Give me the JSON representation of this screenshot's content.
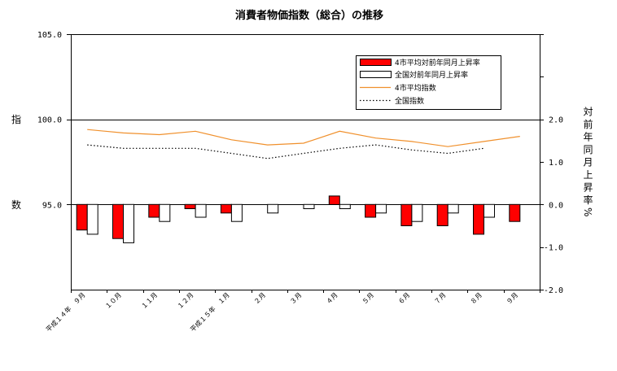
{
  "chart_data": {
    "type": "bar",
    "title": "消費者物価指数（総合）の推移",
    "categories": [
      "平成１４年　９月",
      "１０月",
      "１１月",
      "１２月",
      "平成１５年　１月",
      "２月",
      "３月",
      "４月",
      "５月",
      "６月",
      "７月",
      "８月",
      "９月"
    ],
    "ylabel_left_chars": [
      "指",
      "数"
    ],
    "ylim_left": [
      90,
      105
    ],
    "yticks_left": [
      105,
      100,
      95
    ],
    "ytick_labels_left": [
      "105.0",
      "100.0",
      "95.0"
    ],
    "ylabel_right": "対前年同月上昇率%",
    "ylim_right": [
      -2,
      4
    ],
    "yticks_right": [
      2,
      1,
      0,
      -1,
      -2
    ],
    "ytick_labels_right": [
      "2.0",
      "1.0",
      "0.0",
      "-1.0",
      "-2.0"
    ],
    "grid": true,
    "legend": "top-right",
    "series": [
      {
        "name": "4市平均対前年同月上昇率",
        "type": "bar",
        "axis": "right",
        "color": "#ff0000",
        "values": [
          -0.6,
          -0.8,
          -0.3,
          -0.1,
          -0.2,
          0.0,
          0.0,
          0.2,
          -0.3,
          -0.5,
          -0.5,
          -0.7,
          -0.4
        ]
      },
      {
        "name": "全国対前年同月上昇率",
        "type": "bar",
        "axis": "right",
        "color": "#ffffff",
        "values": [
          -0.7,
          -0.9,
          -0.4,
          -0.3,
          -0.4,
          -0.2,
          -0.1,
          -0.1,
          -0.2,
          -0.4,
          -0.2,
          -0.3,
          null
        ]
      },
      {
        "name": "4市平均指数",
        "type": "line",
        "axis": "left",
        "color": "#f0902c",
        "values": [
          99.4,
          99.2,
          99.1,
          99.3,
          98.8,
          98.5,
          98.6,
          99.3,
          98.9,
          98.7,
          98.4,
          98.7,
          99.0
        ]
      },
      {
        "name": "全国指数",
        "type": "line",
        "axis": "left",
        "color": "#000000",
        "line_style": "dotted",
        "values": [
          98.5,
          98.3,
          98.3,
          98.3,
          98.0,
          97.7,
          98.0,
          98.3,
          98.5,
          98.2,
          98.0,
          98.3,
          null
        ]
      }
    ]
  }
}
